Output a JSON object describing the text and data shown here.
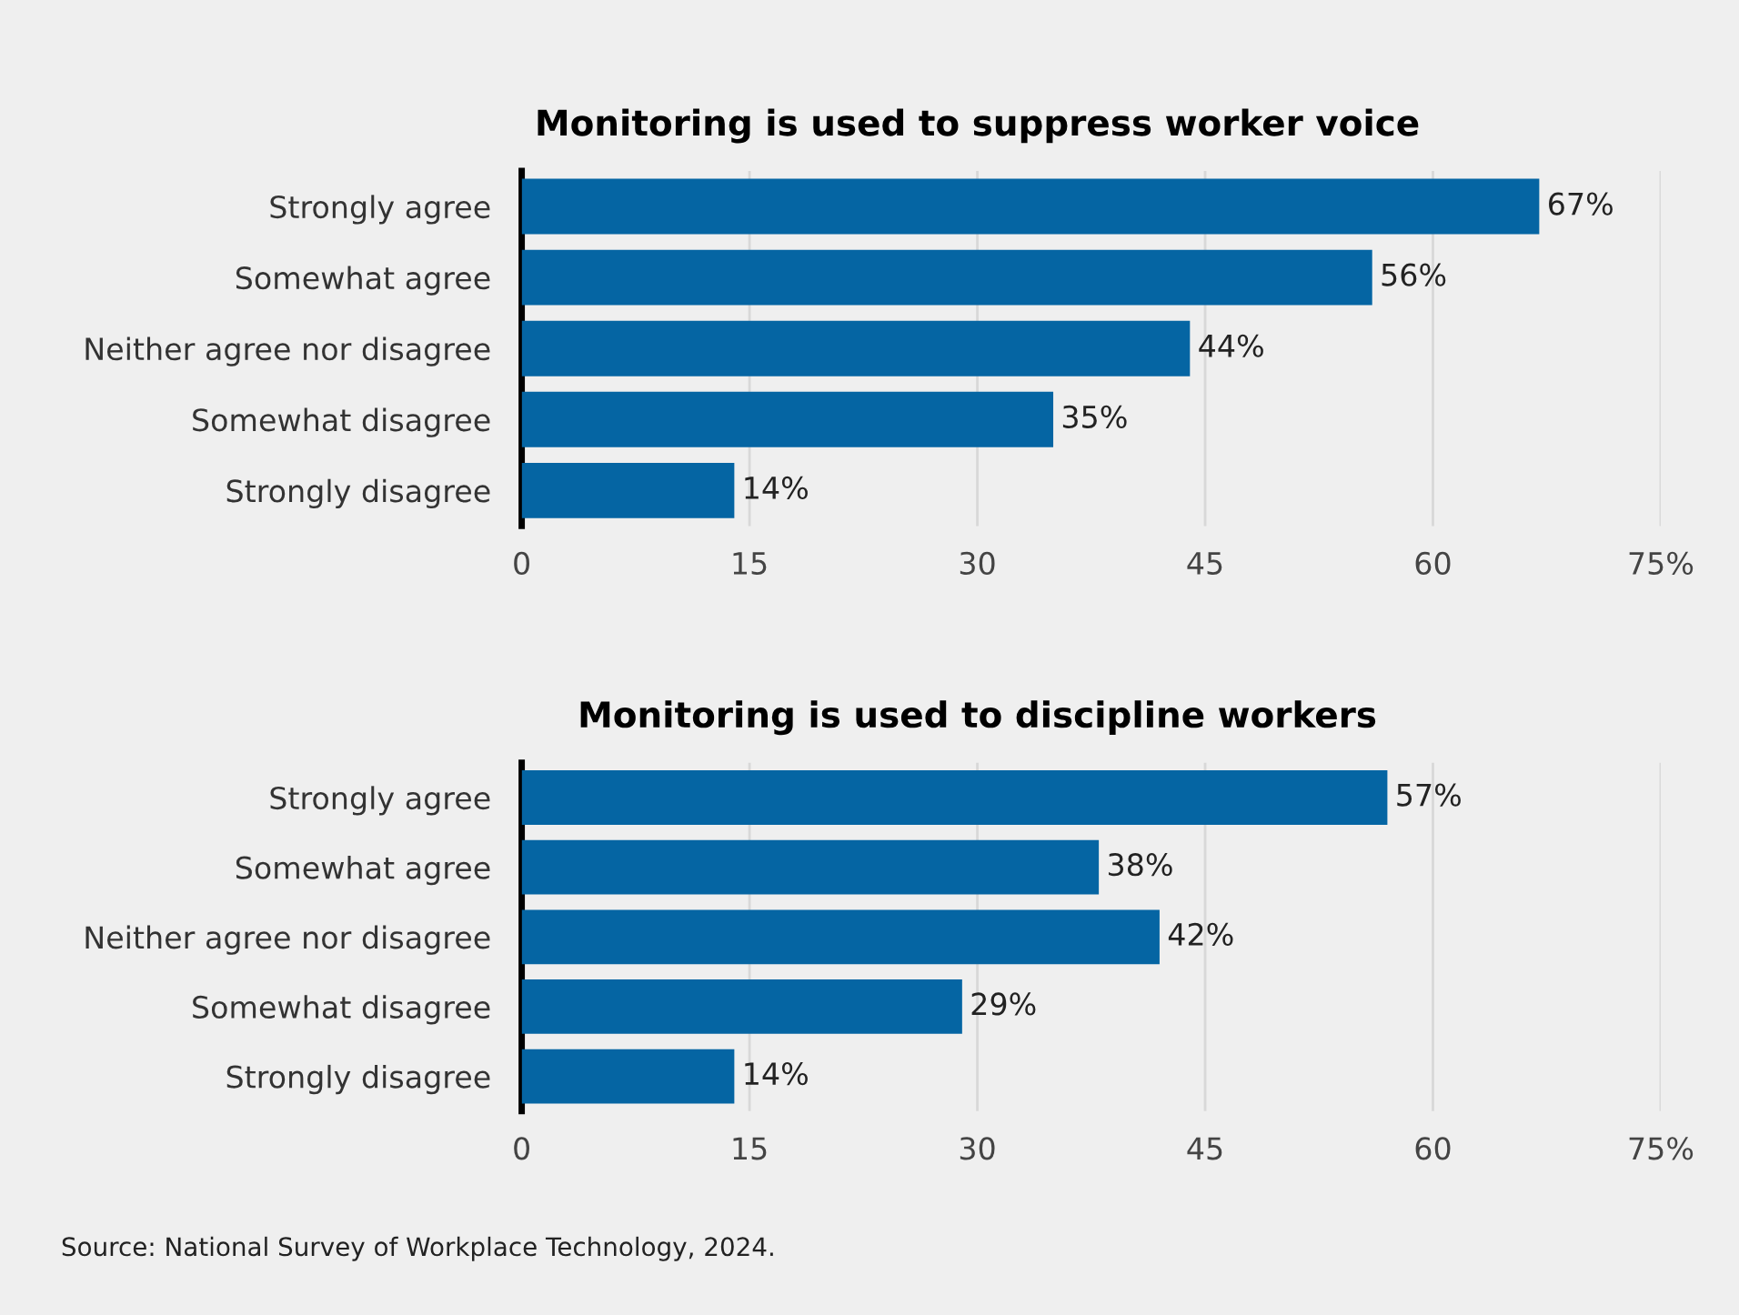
{
  "chart_data": [
    {
      "type": "bar",
      "orientation": "horizontal",
      "title": "Monitoring is used to suppress worker voice",
      "categories": [
        "Strongly agree",
        "Somewhat agree",
        "Neither agree nor disagree",
        "Somewhat disagree",
        "Strongly disagree"
      ],
      "values": [
        67,
        56,
        44,
        35,
        14
      ],
      "color": "#0565a3",
      "value_labels": [
        "67%",
        "56%",
        "44%",
        "35%",
        "14%"
      ],
      "xlim": [
        0,
        75
      ],
      "xticks": [
        0,
        15,
        30,
        45,
        60,
        {
          "value": 75,
          "label": "75%"
        }
      ],
      "grid": "x",
      "legend": false
    },
    {
      "type": "bar",
      "orientation": "horizontal",
      "title": "Monitoring is used to discipline workers",
      "categories": [
        "Strongly agree",
        "Somewhat agree",
        "Neither agree nor disagree",
        "Somewhat disagree",
        "Strongly disagree"
      ],
      "values": [
        57,
        38,
        42,
        29,
        14
      ],
      "color": "#0565a3",
      "value_labels": [
        "57%",
        "38%",
        "42%",
        "29%",
        "14%"
      ],
      "xlim": [
        0,
        75
      ],
      "xticks": [
        0,
        15,
        30,
        45,
        60,
        {
          "value": 75,
          "label": "75%"
        }
      ],
      "grid": "x",
      "legend": false,
      "annotations": [
        "Source: National Survey of Workplace Technology, 2024."
      ]
    }
  ]
}
